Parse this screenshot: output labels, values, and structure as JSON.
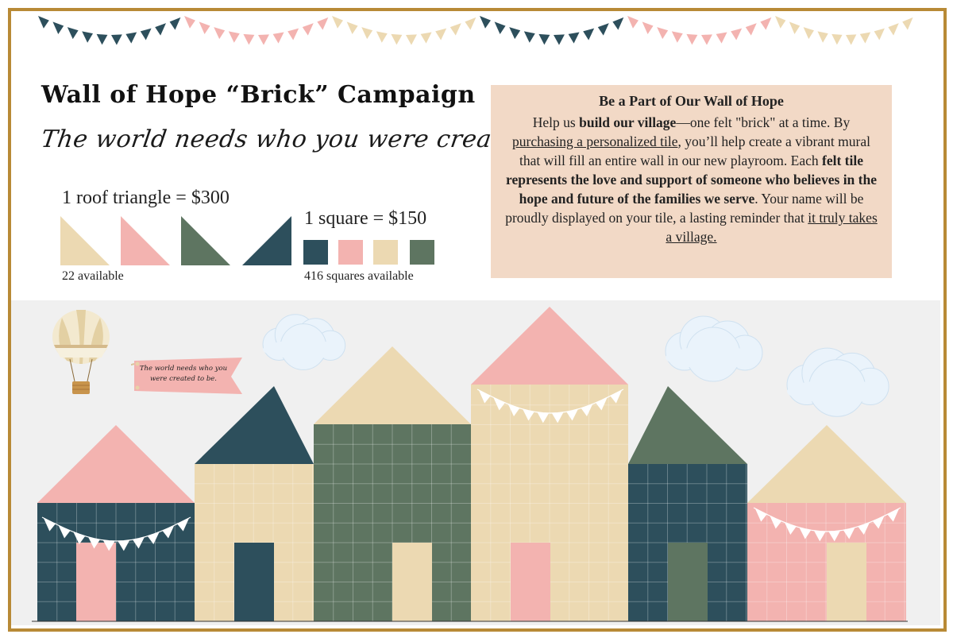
{
  "heading": {
    "title": "Wall of Hope “Brick” Campaign",
    "tagline": "The world needs who you were created to be."
  },
  "pricing": {
    "triangle_label": "1 roof triangle = $300",
    "triangle_available": "22 available",
    "square_label": "1 square = $150",
    "square_available": "416 squares available"
  },
  "info": {
    "heading": "Be a Part of Our Wall of Hope",
    "p1": "Help us ",
    "b1": "build our village",
    "p2": "—one felt \"brick\" at a time. By ",
    "u1": "purchasing a personalized tile",
    "p3": ", you’ll help create a vibrant mural that will fill an entire wall in our new playroom. Each ",
    "b2": "felt tile represents the love and support of someone who believes in the hope and future of the families we serve",
    "p4": ". Your name will be proudly displayed on your tile, a lasting reminder that ",
    "u2": "it truly takes a village."
  },
  "banner": {
    "text": "The world needs who you were created to be."
  },
  "colors": {
    "navy": "#2d4f5c",
    "pink": "#f3b3b0",
    "cream": "#ecd9b2",
    "green": "#5e7561",
    "frame": "#b88a36",
    "panel": "#f2d9c6"
  }
}
